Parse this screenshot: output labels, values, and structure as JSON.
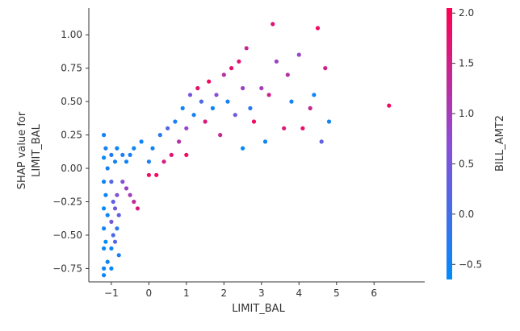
{
  "chart_data": {
    "type": "scatter",
    "xlabel": "LIMIT_BAL",
    "ylabel_lines": [
      "SHAP value for",
      "LIMIT_BAL"
    ],
    "colorbar_label": "BILL_AMT2",
    "xlim": [
      -1.6,
      7.35
    ],
    "ylim": [
      -0.85,
      1.2
    ],
    "x_ticks": [
      -1,
      0,
      1,
      2,
      3,
      4,
      5,
      6
    ],
    "x_tick_labels": [
      "−1",
      "0",
      "1",
      "2",
      "3",
      "4",
      "5",
      "6"
    ],
    "y_ticks": [
      -0.75,
      -0.5,
      -0.25,
      0.0,
      0.25,
      0.5,
      0.75,
      1.0
    ],
    "y_tick_labels": [
      "−0.75",
      "−0.50",
      "−0.25",
      "0.00",
      "0.25",
      "0.50",
      "0.75",
      "1.00"
    ],
    "colorbar_range": [
      -0.65,
      2.05
    ],
    "colorbar_ticks": [
      -0.5,
      0.0,
      0.5,
      1.0,
      1.5,
      2.0
    ],
    "colorbar_tick_labels": [
      "−0.5",
      "0.0",
      "0.5",
      "1.0",
      "1.5",
      "2.0"
    ],
    "colors": {
      "low": "#008bfb",
      "mid": "#8a4ed6",
      "high": "#ff0051"
    },
    "points": [
      [
        -1.2,
        0.25,
        -0.5
      ],
      [
        -1.2,
        0.08,
        -0.6
      ],
      [
        -1.2,
        -0.1,
        -0.5
      ],
      [
        -1.2,
        -0.3,
        -0.6
      ],
      [
        -1.2,
        -0.45,
        -0.5
      ],
      [
        -1.2,
        -0.6,
        -0.6
      ],
      [
        -1.2,
        -0.75,
        -0.5
      ],
      [
        -1.2,
        -0.8,
        -0.6
      ],
      [
        -1.15,
        0.15,
        -0.4
      ],
      [
        -1.15,
        -0.2,
        -0.5
      ],
      [
        -1.15,
        -0.55,
        -0.6
      ],
      [
        -1.1,
        0.0,
        -0.4
      ],
      [
        -1.1,
        -0.35,
        -0.5
      ],
      [
        -1.1,
        -0.7,
        -0.5
      ],
      [
        -1.0,
        0.1,
        -0.3
      ],
      [
        -1.0,
        -0.1,
        0.2
      ],
      [
        -1.0,
        -0.4,
        0.5
      ],
      [
        -1.0,
        -0.6,
        -0.5
      ],
      [
        -1.0,
        -0.75,
        -0.6
      ],
      [
        -0.95,
        -0.25,
        0.3
      ],
      [
        -0.95,
        -0.5,
        0.1
      ],
      [
        -0.9,
        0.05,
        -0.5
      ],
      [
        -0.9,
        -0.3,
        0.4
      ],
      [
        -0.9,
        -0.55,
        0.2
      ],
      [
        -0.85,
        0.15,
        -0.5
      ],
      [
        -0.85,
        -0.2,
        0.6
      ],
      [
        -0.85,
        -0.45,
        -0.2
      ],
      [
        -0.8,
        -0.35,
        0.3
      ],
      [
        -0.8,
        -0.65,
        -0.4
      ],
      [
        -0.7,
        0.1,
        -0.4
      ],
      [
        -0.7,
        -0.1,
        0.7
      ],
      [
        -0.6,
        0.05,
        -0.5
      ],
      [
        -0.6,
        -0.15,
        0.9
      ],
      [
        -0.5,
        0.1,
        -0.4
      ],
      [
        -0.5,
        -0.2,
        1.0
      ],
      [
        -0.4,
        0.15,
        -0.5
      ],
      [
        -0.4,
        -0.25,
        1.3
      ],
      [
        -0.3,
        -0.3,
        1.6
      ],
      [
        -0.2,
        0.2,
        -0.5
      ],
      [
        0.0,
        0.05,
        -0.4
      ],
      [
        0.0,
        -0.05,
        1.8
      ],
      [
        0.1,
        0.15,
        -0.5
      ],
      [
        0.2,
        -0.05,
        1.9
      ],
      [
        0.3,
        0.25,
        -0.3
      ],
      [
        0.4,
        0.05,
        1.5
      ],
      [
        0.5,
        0.3,
        0.2
      ],
      [
        0.6,
        0.1,
        1.7
      ],
      [
        0.7,
        0.35,
        -0.4
      ],
      [
        0.8,
        0.2,
        1.2
      ],
      [
        0.9,
        0.45,
        -0.5
      ],
      [
        1.0,
        0.3,
        0.8
      ],
      [
        1.0,
        0.1,
        1.9
      ],
      [
        1.1,
        0.55,
        0.5
      ],
      [
        1.2,
        0.4,
        -0.4
      ],
      [
        1.3,
        0.6,
        1.8
      ],
      [
        1.4,
        0.5,
        0.1
      ],
      [
        1.5,
        0.35,
        1.6
      ],
      [
        1.6,
        0.65,
        1.9
      ],
      [
        1.7,
        0.45,
        -0.5
      ],
      [
        1.8,
        0.55,
        0.7
      ],
      [
        1.9,
        0.25,
        1.4
      ],
      [
        2.0,
        0.7,
        1.2
      ],
      [
        2.1,
        0.5,
        -0.4
      ],
      [
        2.2,
        0.75,
        1.8
      ],
      [
        2.3,
        0.4,
        0.4
      ],
      [
        2.4,
        0.8,
        1.7
      ],
      [
        2.5,
        0.6,
        0.9
      ],
      [
        2.5,
        0.15,
        -0.6
      ],
      [
        2.6,
        0.9,
        1.4
      ],
      [
        2.7,
        0.45,
        -0.3
      ],
      [
        2.8,
        0.35,
        1.9
      ],
      [
        3.0,
        0.6,
        1.0
      ],
      [
        3.1,
        0.2,
        -0.5
      ],
      [
        3.2,
        0.55,
        1.5
      ],
      [
        3.3,
        1.08,
        1.7
      ],
      [
        3.4,
        0.8,
        0.9
      ],
      [
        3.6,
        0.3,
        1.6
      ],
      [
        3.7,
        0.7,
        1.2
      ],
      [
        3.8,
        0.5,
        -0.4
      ],
      [
        4.0,
        0.85,
        0.8
      ],
      [
        4.1,
        0.3,
        1.8
      ],
      [
        4.3,
        0.45,
        1.4
      ],
      [
        4.4,
        0.55,
        -0.5
      ],
      [
        4.5,
        1.05,
        1.9
      ],
      [
        4.6,
        0.2,
        0.3
      ],
      [
        4.7,
        0.75,
        1.5
      ],
      [
        4.8,
        0.35,
        -0.5
      ],
      [
        6.4,
        0.47,
        1.9
      ]
    ]
  }
}
